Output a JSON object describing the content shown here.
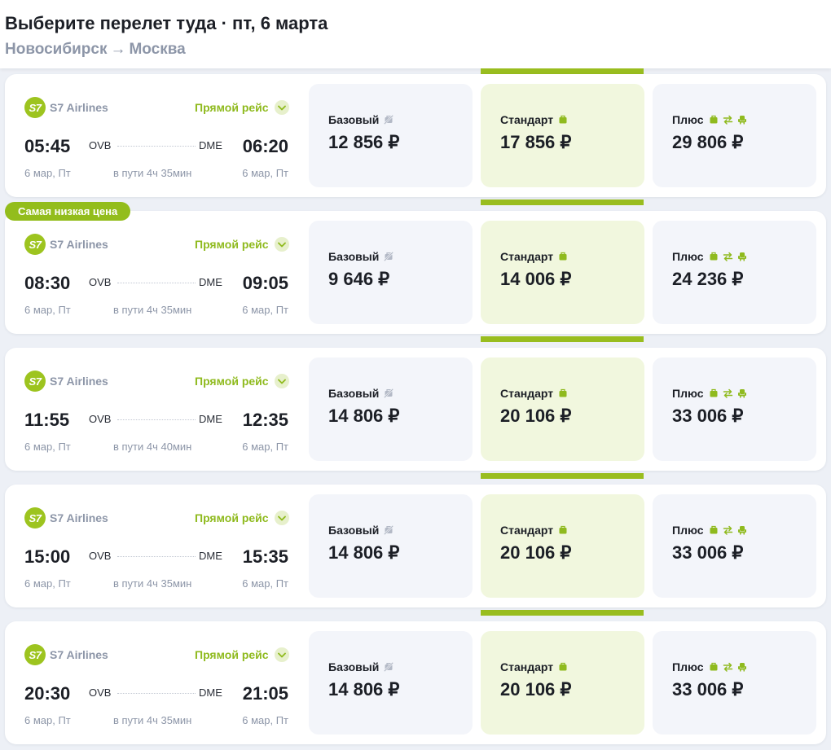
{
  "header": {
    "title": "Выберите перелет туда · пт, 6 марта",
    "route_from": "Новосибирск",
    "route_arrow": "→",
    "route_to": "Москва"
  },
  "colors": {
    "accent": "#99bd1f",
    "standard_bg": "#f1f7de",
    "fare_bg": "#f3f5fa",
    "muted_text": "#8d96a8"
  },
  "badge": {
    "label": "Самая низкая цена"
  },
  "flights": [
    {
      "airline_logo": "S7",
      "airline": "S7 Airlines",
      "direct_label": "Прямой рейс",
      "dep_time": "05:45",
      "arr_time": "06:20",
      "from": "OVB",
      "to": "DME",
      "dep_date": "6 мар, Пт",
      "arr_date": "6 мар, Пт",
      "duration": "в пути 4ч 35мин",
      "fares": [
        {
          "name": "Базовый",
          "price": "12 856 ₽"
        },
        {
          "name": "Стандарт",
          "price": "17 856 ₽"
        },
        {
          "name": "Плюс",
          "price": "29 806 ₽"
        }
      ]
    },
    {
      "airline_logo": "S7",
      "airline": "S7 Airlines",
      "direct_label": "Прямой рейс",
      "dep_time": "08:30",
      "arr_time": "09:05",
      "from": "OVB",
      "to": "DME",
      "dep_date": "6 мар, Пт",
      "arr_date": "6 мар, Пт",
      "duration": "в пути 4ч 35мин",
      "fares": [
        {
          "name": "Базовый",
          "price": "9 646 ₽"
        },
        {
          "name": "Стандарт",
          "price": "14 006 ₽"
        },
        {
          "name": "Плюс",
          "price": "24 236 ₽"
        }
      ]
    },
    {
      "airline_logo": "S7",
      "airline": "S7 Airlines",
      "direct_label": "Прямой рейс",
      "dep_time": "11:55",
      "arr_time": "12:35",
      "from": "OVB",
      "to": "DME",
      "dep_date": "6 мар, Пт",
      "arr_date": "6 мар, Пт",
      "duration": "в пути 4ч 40мин",
      "fares": [
        {
          "name": "Базовый",
          "price": "14 806 ₽"
        },
        {
          "name": "Стандарт",
          "price": "20 106 ₽"
        },
        {
          "name": "Плюс",
          "price": "33 006 ₽"
        }
      ]
    },
    {
      "airline_logo": "S7",
      "airline": "S7 Airlines",
      "direct_label": "Прямой рейс",
      "dep_time": "15:00",
      "arr_time": "15:35",
      "from": "OVB",
      "to": "DME",
      "dep_date": "6 мар, Пт",
      "arr_date": "6 мар, Пт",
      "duration": "в пути 4ч 35мин",
      "fares": [
        {
          "name": "Базовый",
          "price": "14 806 ₽"
        },
        {
          "name": "Стандарт",
          "price": "20 106 ₽"
        },
        {
          "name": "Плюс",
          "price": "33 006 ₽"
        }
      ]
    },
    {
      "airline_logo": "S7",
      "airline": "S7 Airlines",
      "direct_label": "Прямой рейс",
      "dep_time": "20:30",
      "arr_time": "21:05",
      "from": "OVB",
      "to": "DME",
      "dep_date": "6 мар, Пт",
      "arr_date": "6 мар, Пт",
      "duration": "в пути 4ч 35мин",
      "fares": [
        {
          "name": "Базовый",
          "price": "14 806 ₽"
        },
        {
          "name": "Стандарт",
          "price": "20 106 ₽"
        },
        {
          "name": "Плюс",
          "price": "33 006 ₽"
        }
      ]
    }
  ],
  "icons": {
    "direct_toggle": "chevron-down-icon",
    "basic_fare": "no-baggage-icon",
    "standard_fare": "baggage-icon",
    "plus_fare": [
      "baggage-icon",
      "exchange-icon",
      "seat-icon"
    ]
  }
}
